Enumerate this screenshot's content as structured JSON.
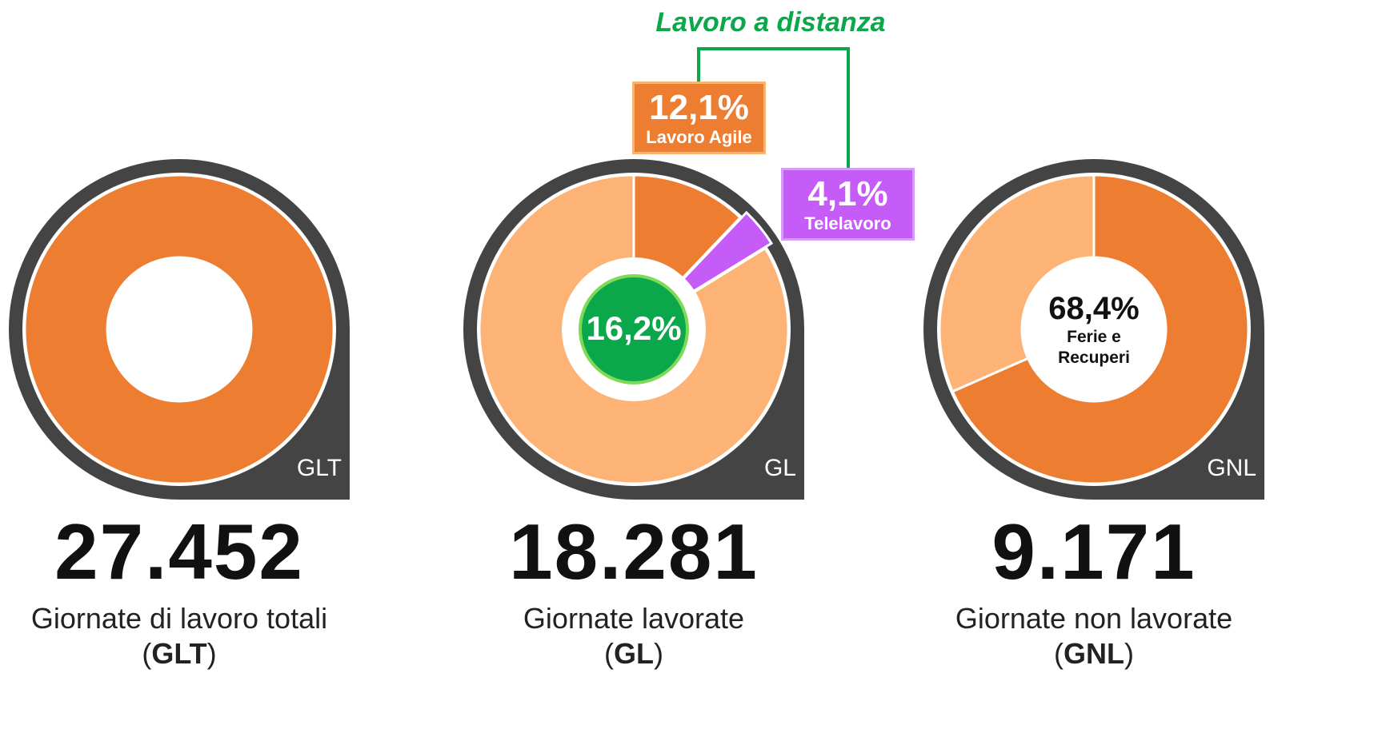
{
  "chart_data": [
    {
      "type": "donut",
      "code": "GLT",
      "total": 27452,
      "total_label": "27.452",
      "caption": "Giornate di lavoro totali",
      "segments": [
        {
          "value": 100,
          "color": "#ed7d31"
        }
      ]
    },
    {
      "type": "donut",
      "code": "GL",
      "total": 18281,
      "total_label": "18.281",
      "caption": "Giornate lavorate",
      "segments": [
        {
          "name": "Lavoro Agile",
          "value": 12.1,
          "value_label": "12,1%",
          "color": "#ed7d31"
        },
        {
          "name": "Telelavoro",
          "value": 4.1,
          "value_label": "4,1%",
          "color": "#c55cf7",
          "exploded": true
        },
        {
          "value": 83.8,
          "color": "#fdb375"
        }
      ],
      "group": {
        "name": "Lavoro a distanza",
        "value": 16.2,
        "value_label": "16,2%",
        "color": "#0aa84a"
      }
    },
    {
      "type": "donut",
      "code": "GNL",
      "total": 9171,
      "total_label": "9.171",
      "caption": "Giornate non lavorate",
      "segments": [
        {
          "name": "Ferie e Recuperi",
          "value": 68.4,
          "value_label": "68,4%",
          "color": "#ed7d31"
        },
        {
          "value": 31.6,
          "color": "#fdb375"
        }
      ]
    }
  ]
}
